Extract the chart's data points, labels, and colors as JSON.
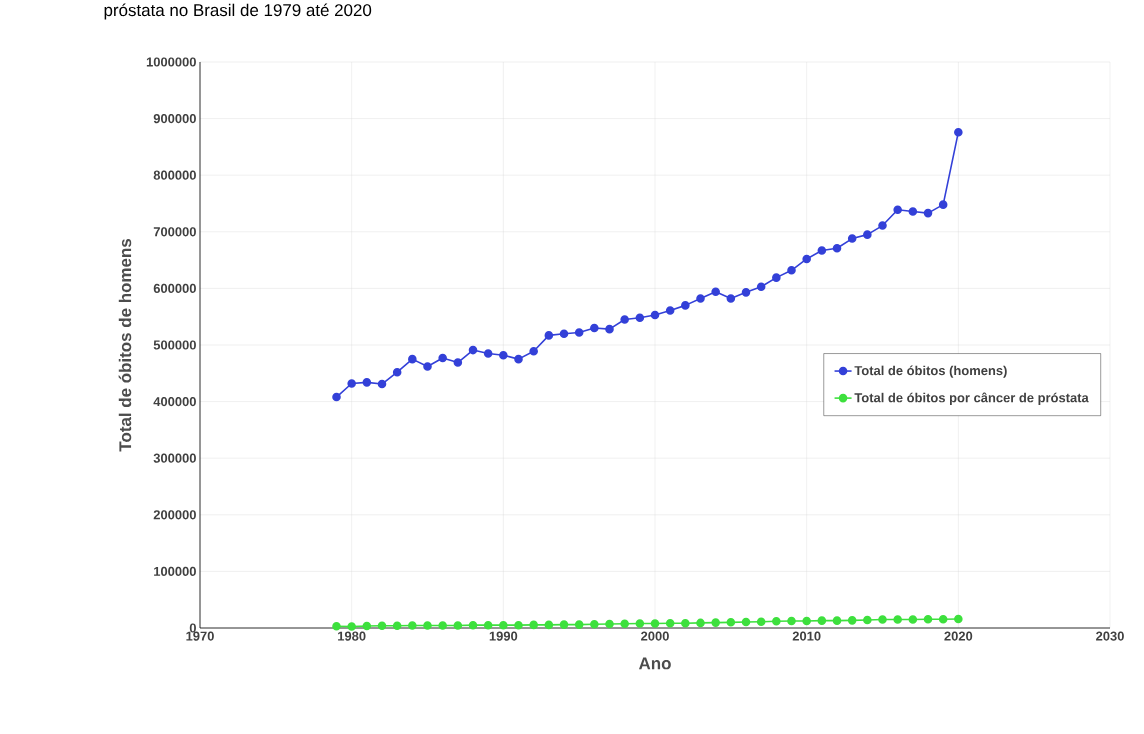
{
  "chart_data": {
    "type": "line",
    "title": "próstata no Brasil de 1979 até 2020",
    "xlabel": "Ano",
    "ylabel": "Total de óbitos de homens",
    "x": [
      1979,
      1980,
      1981,
      1982,
      1983,
      1984,
      1985,
      1986,
      1987,
      1988,
      1989,
      1990,
      1991,
      1992,
      1993,
      1994,
      1995,
      1996,
      1997,
      1998,
      1999,
      2000,
      2001,
      2002,
      2003,
      2004,
      2005,
      2006,
      2007,
      2008,
      2009,
      2010,
      2011,
      2012,
      2013,
      2014,
      2015,
      2016,
      2017,
      2018,
      2019,
      2020
    ],
    "series": [
      {
        "name": "Total de óbitos (homens)",
        "color": "#3340d8",
        "values": [
          408000,
          432000,
          434000,
          431000,
          452000,
          475000,
          462000,
          477000,
          469000,
          491000,
          485000,
          482000,
          475000,
          489000,
          517000,
          520000,
          522000,
          530000,
          528000,
          545000,
          548000,
          553000,
          561000,
          570000,
          582000,
          594000,
          582000,
          593000,
          603000,
          619000,
          632000,
          652000,
          667000,
          671000,
          688000,
          695000,
          711000,
          739000,
          736000,
          733000,
          748000,
          876000
        ]
      },
      {
        "name": "Total de óbitos por câncer de próstata",
        "color": "#3de03d",
        "values": [
          3000,
          2500,
          3500,
          4000,
          4000,
          4500,
          4500,
          4500,
          4500,
          5000,
          5000,
          5000,
          5000,
          5500,
          5500,
          6000,
          6000,
          6500,
          7000,
          7500,
          8000,
          8000,
          8500,
          8500,
          9000,
          9500,
          10000,
          10500,
          11000,
          12000,
          12500,
          12500,
          13000,
          13000,
          13500,
          14000,
          15000,
          15000,
          15000,
          15500,
          15500,
          16000
        ]
      }
    ],
    "xlim": [
      1970,
      2030
    ],
    "xticks": [
      1970,
      1980,
      1990,
      2000,
      2010,
      2020,
      2030
    ],
    "ylim": [
      0,
      1000000
    ],
    "yticks": [
      0,
      100000,
      200000,
      300000,
      400000,
      500000,
      600000,
      700000,
      800000,
      900000,
      1000000
    ],
    "grid": true,
    "legend": "right",
    "marker": "circle",
    "line_style": "solid"
  }
}
